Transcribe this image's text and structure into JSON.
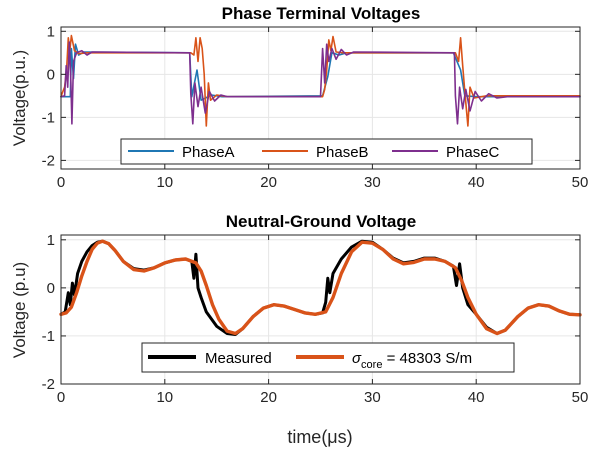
{
  "chart_data": [
    {
      "type": "line",
      "title": "Phase Terminal Voltages",
      "xlabel": "",
      "ylabel": "Voltage(p.u.)",
      "xlim": [
        0,
        50
      ],
      "ylim": [
        -2.2,
        1.1
      ],
      "xticks": [
        0,
        10,
        20,
        30,
        40,
        50
      ],
      "yticks": [
        1,
        0,
        -1,
        -2
      ],
      "grid": true,
      "legend_position": "bottom",
      "series": [
        {
          "name": "PhaseA",
          "color": "#1f77b4",
          "points": [
            [
              0,
              -0.52
            ],
            [
              0.9,
              -0.52
            ],
            [
              1.0,
              0.6
            ],
            [
              1.2,
              -0.1
            ],
            [
              1.4,
              0.7
            ],
            [
              1.7,
              0.45
            ],
            [
              2.2,
              0.52
            ],
            [
              12.4,
              0.5
            ],
            [
              12.6,
              -0.52
            ],
            [
              13.1,
              0.1
            ],
            [
              13.5,
              -0.6
            ],
            [
              14.5,
              -0.48
            ],
            [
              15.5,
              -0.52
            ],
            [
              25.2,
              -0.5
            ],
            [
              25.7,
              -0.05
            ],
            [
              26.1,
              0.5
            ],
            [
              26.8,
              0.45
            ],
            [
              27.5,
              0.5
            ],
            [
              37.8,
              0.5
            ],
            [
              38.5,
              0.1
            ],
            [
              38.9,
              -0.5
            ],
            [
              40,
              -0.52
            ],
            [
              50,
              -0.52
            ]
          ]
        },
        {
          "name": "PhaseB",
          "color": "#d95319",
          "points": [
            [
              0,
              -0.52
            ],
            [
              0.1,
              -0.45
            ],
            [
              0.35,
              -0.3
            ],
            [
              0.55,
              0.15
            ],
            [
              0.7,
              0.85
            ],
            [
              0.85,
              0.55
            ],
            [
              1.0,
              0.9
            ],
            [
              1.3,
              0.55
            ],
            [
              1.7,
              0.48
            ],
            [
              2.5,
              0.5
            ],
            [
              12.5,
              0.5
            ],
            [
              12.8,
              0.45
            ],
            [
              13.0,
              0.85
            ],
            [
              13.2,
              0.3
            ],
            [
              13.4,
              0.85
            ],
            [
              13.6,
              0.6
            ],
            [
              13.8,
              0.0
            ],
            [
              14.0,
              -1.2
            ],
            [
              14.2,
              -0.2
            ],
            [
              14.4,
              -0.6
            ],
            [
              15,
              -0.48
            ],
            [
              16,
              -0.52
            ],
            [
              25.2,
              -0.52
            ],
            [
              25.4,
              -0.35
            ],
            [
              25.6,
              0.1
            ],
            [
              25.8,
              0.8
            ],
            [
              26.0,
              0.55
            ],
            [
              26.2,
              0.88
            ],
            [
              26.5,
              0.52
            ],
            [
              27.2,
              0.5
            ],
            [
              38.0,
              0.5
            ],
            [
              38.3,
              0.3
            ],
            [
              38.5,
              0.85
            ],
            [
              38.7,
              0.2
            ],
            [
              38.9,
              -0.4
            ],
            [
              39.2,
              -1.2
            ],
            [
              39.4,
              -0.3
            ],
            [
              39.8,
              -0.55
            ],
            [
              41,
              -0.5
            ],
            [
              50,
              -0.5
            ]
          ]
        },
        {
          "name": "PhaseC",
          "color": "#7e2f8e",
          "points": [
            [
              0,
              -0.52
            ],
            [
              0.35,
              -0.5
            ],
            [
              0.5,
              0.2
            ],
            [
              0.65,
              -0.3
            ],
            [
              0.8,
              0.75
            ],
            [
              0.95,
              -0.2
            ],
            [
              1.05,
              -1.15
            ],
            [
              1.2,
              0.3
            ],
            [
              1.5,
              0.5
            ],
            [
              2,
              0.55
            ],
            [
              2.5,
              0.45
            ],
            [
              3,
              0.52
            ],
            [
              12.4,
              0.5
            ],
            [
              12.5,
              -0.45
            ],
            [
              12.7,
              -1.15
            ],
            [
              12.9,
              -0.2
            ],
            [
              13.2,
              -0.75
            ],
            [
              13.5,
              -0.3
            ],
            [
              13.9,
              -0.9
            ],
            [
              14.3,
              -0.4
            ],
            [
              14.8,
              -0.62
            ],
            [
              15.4,
              -0.48
            ],
            [
              16,
              -0.52
            ],
            [
              25.0,
              -0.52
            ],
            [
              25.2,
              0.6
            ],
            [
              25.4,
              -0.2
            ],
            [
              25.6,
              0.7
            ],
            [
              25.8,
              0.3
            ],
            [
              26.1,
              0.6
            ],
            [
              26.5,
              0.35
            ],
            [
              27,
              0.58
            ],
            [
              27.5,
              0.45
            ],
            [
              28.2,
              0.52
            ],
            [
              37.9,
              0.5
            ],
            [
              38.0,
              -0.5
            ],
            [
              38.2,
              -1.15
            ],
            [
              38.4,
              -0.3
            ],
            [
              38.7,
              -0.8
            ],
            [
              39.0,
              -0.35
            ],
            [
              39.4,
              -0.85
            ],
            [
              39.9,
              -0.4
            ],
            [
              40.5,
              -0.62
            ],
            [
              41.2,
              -0.45
            ],
            [
              42,
              -0.55
            ],
            [
              43,
              -0.52
            ],
            [
              50,
              -0.52
            ]
          ]
        }
      ]
    },
    {
      "type": "line",
      "title": "Neutral-Ground Voltage",
      "xlabel": "time(μs)",
      "ylabel": "Voltage (p.u)",
      "xlim": [
        0,
        50
      ],
      "ylim": [
        -2,
        1.1
      ],
      "xticks": [
        0,
        10,
        20,
        30,
        40,
        50
      ],
      "yticks": [
        1,
        0,
        -1,
        -2
      ],
      "grid": true,
      "legend_position": "bottom",
      "series": [
        {
          "name": "Measured",
          "color": "#000000",
          "points": [
            [
              0,
              -0.55
            ],
            [
              0.4,
              -0.5
            ],
            [
              0.7,
              -0.1
            ],
            [
              0.9,
              -0.35
            ],
            [
              1.1,
              0.1
            ],
            [
              1.3,
              -0.15
            ],
            [
              1.6,
              0.3
            ],
            [
              2,
              0.55
            ],
            [
              2.5,
              0.75
            ],
            [
              3,
              0.88
            ],
            [
              3.5,
              0.95
            ],
            [
              4,
              0.97
            ],
            [
              4.6,
              0.92
            ],
            [
              5.2,
              0.78
            ],
            [
              6,
              0.55
            ],
            [
              7,
              0.4
            ],
            [
              8,
              0.37
            ],
            [
              9,
              0.42
            ],
            [
              10,
              0.52
            ],
            [
              11,
              0.58
            ],
            [
              12,
              0.6
            ],
            [
              12.6,
              0.55
            ],
            [
              12.8,
              0.2
            ],
            [
              13.0,
              0.7
            ],
            [
              13.2,
              0.0
            ],
            [
              13.5,
              -0.2
            ],
            [
              14,
              -0.5
            ],
            [
              15,
              -0.8
            ],
            [
              16,
              -0.95
            ],
            [
              16.8,
              -0.97
            ],
            [
              17.5,
              -0.85
            ],
            [
              18.5,
              -0.6
            ],
            [
              19.5,
              -0.42
            ],
            [
              20.5,
              -0.35
            ],
            [
              21.5,
              -0.38
            ],
            [
              22.5,
              -0.45
            ],
            [
              23.5,
              -0.52
            ],
            [
              24.5,
              -0.55
            ],
            [
              25.2,
              -0.52
            ],
            [
              25.5,
              -0.3
            ],
            [
              25.7,
              0.2
            ],
            [
              25.9,
              -0.1
            ],
            [
              26.2,
              0.3
            ],
            [
              27,
              0.6
            ],
            [
              28,
              0.85
            ],
            [
              29,
              0.97
            ],
            [
              30,
              0.95
            ],
            [
              31,
              0.8
            ],
            [
              32,
              0.62
            ],
            [
              33,
              0.52
            ],
            [
              34,
              0.55
            ],
            [
              35,
              0.62
            ],
            [
              36,
              0.62
            ],
            [
              37,
              0.55
            ],
            [
              37.8,
              0.45
            ],
            [
              38.1,
              0.05
            ],
            [
              38.4,
              0.5
            ],
            [
              38.7,
              0.0
            ],
            [
              39.2,
              -0.35
            ],
            [
              40,
              -0.55
            ],
            [
              41,
              -0.82
            ],
            [
              42,
              -0.95
            ],
            [
              42.8,
              -0.88
            ],
            [
              44,
              -0.6
            ],
            [
              45,
              -0.42
            ],
            [
              46,
              -0.35
            ],
            [
              47,
              -0.38
            ],
            [
              48,
              -0.48
            ],
            [
              49,
              -0.55
            ],
            [
              50,
              -0.56
            ]
          ]
        },
        {
          "name": "σcore = 48303 S/m",
          "color": "#d95319",
          "points": [
            [
              0,
              -0.55
            ],
            [
              0.5,
              -0.52
            ],
            [
              1,
              -0.4
            ],
            [
              1.5,
              -0.1
            ],
            [
              2,
              0.25
            ],
            [
              2.5,
              0.55
            ],
            [
              3,
              0.8
            ],
            [
              3.5,
              0.93
            ],
            [
              4,
              0.97
            ],
            [
              4.6,
              0.92
            ],
            [
              5.2,
              0.78
            ],
            [
              6,
              0.55
            ],
            [
              7,
              0.38
            ],
            [
              8,
              0.35
            ],
            [
              9,
              0.42
            ],
            [
              10,
              0.52
            ],
            [
              11,
              0.58
            ],
            [
              12,
              0.6
            ],
            [
              13,
              0.52
            ],
            [
              13.5,
              0.35
            ],
            [
              14,
              0.05
            ],
            [
              14.6,
              -0.35
            ],
            [
              15.2,
              -0.65
            ],
            [
              16,
              -0.9
            ],
            [
              16.8,
              -0.95
            ],
            [
              17.5,
              -0.85
            ],
            [
              18.5,
              -0.6
            ],
            [
              19.5,
              -0.42
            ],
            [
              20.5,
              -0.35
            ],
            [
              21.5,
              -0.38
            ],
            [
              22.5,
              -0.45
            ],
            [
              23.5,
              -0.52
            ],
            [
              24.5,
              -0.55
            ],
            [
              25.5,
              -0.5
            ],
            [
              26.2,
              -0.2
            ],
            [
              27,
              0.3
            ],
            [
              28,
              0.75
            ],
            [
              29,
              0.95
            ],
            [
              30,
              0.93
            ],
            [
              31,
              0.8
            ],
            [
              32,
              0.6
            ],
            [
              33,
              0.5
            ],
            [
              34,
              0.53
            ],
            [
              35,
              0.6
            ],
            [
              36,
              0.6
            ],
            [
              37,
              0.55
            ],
            [
              38,
              0.42
            ],
            [
              38.6,
              0.15
            ],
            [
              39.2,
              -0.2
            ],
            [
              40,
              -0.55
            ],
            [
              41,
              -0.85
            ],
            [
              42,
              -0.95
            ],
            [
              42.8,
              -0.88
            ],
            [
              44,
              -0.6
            ],
            [
              45,
              -0.42
            ],
            [
              46,
              -0.35
            ],
            [
              47,
              -0.38
            ],
            [
              48,
              -0.48
            ],
            [
              49,
              -0.55
            ],
            [
              50,
              -0.56
            ]
          ]
        }
      ]
    }
  ]
}
